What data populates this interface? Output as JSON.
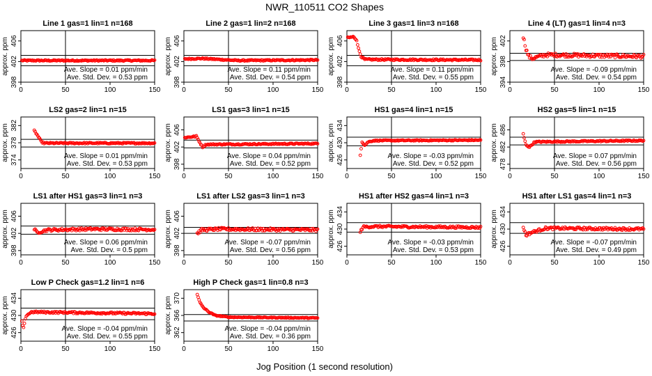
{
  "figure": {
    "title": "NWR_110511  CO2 Shapes",
    "xlabel": "Jog Position (1 second resolution)",
    "marker_color": "#ff0000"
  },
  "chart_data": [
    {
      "type": "scatter",
      "title": "Line 1 gas=1 lin=1 n=168",
      "ylabel": "approx. ppm",
      "xlim": [
        0,
        150
      ],
      "xticks": [
        0,
        50,
        100,
        150
      ],
      "ylim": [
        398,
        408
      ],
      "yticks": [
        398,
        402,
        406
      ],
      "hlines": [
        403.2,
        401.2
      ],
      "vline": 50,
      "slope": "Ave. Slope = 0.01  ppm/min",
      "sd": "Ave. Std. Dev. = 0.53  ppm",
      "series": [
        {
          "x_start": 1,
          "x_end": 150,
          "values": [
            [
              1,
              402.2
            ],
            [
              150,
              402.2
            ]
          ],
          "noise": 0.12
        }
      ]
    },
    {
      "type": "scatter",
      "title": "Line 2 gas=1 lin=2 n=168",
      "ylabel": "approx. ppm",
      "xlim": [
        0,
        150
      ],
      "xticks": [
        0,
        50,
        100,
        150
      ],
      "ylim": [
        398,
        408
      ],
      "yticks": [
        398,
        402,
        406
      ],
      "hlines": [
        403.2,
        401.2
      ],
      "vline": 50,
      "slope": "Ave. Slope = 0.11  ppm/min",
      "sd": "Ave. Std. Dev. = 0.54  ppm",
      "series": [
        {
          "x_start": 1,
          "x_end": 150,
          "values": [
            [
              1,
              402.5
            ],
            [
              20,
              402.6
            ],
            [
              60,
              402.2
            ],
            [
              150,
              402.3
            ]
          ],
          "noise": 0.12
        }
      ]
    },
    {
      "type": "scatter",
      "title": "Line 3 gas=1 lin=3 n=168",
      "ylabel": "approx. ppm",
      "xlim": [
        0,
        150
      ],
      "xticks": [
        0,
        50,
        100,
        150
      ],
      "ylim": [
        398,
        408
      ],
      "yticks": [
        398,
        402,
        406
      ],
      "hlines": [
        403.2,
        401.2
      ],
      "vline": 50,
      "slope": "Ave. Slope = 0.11  ppm/min",
      "sd": "Ave. Std. Dev. = 0.55  ppm",
      "series": [
        {
          "x_start": 1,
          "x_end": 150,
          "values": [
            [
              1,
              406.6
            ],
            [
              7,
              406.8
            ],
            [
              11,
              406.2
            ],
            [
              13,
              404.5
            ],
            [
              16,
              403.0
            ],
            [
              20,
              402.4
            ],
            [
              150,
              402.3
            ]
          ],
          "noise": 0.15
        }
      ]
    },
    {
      "type": "scatter",
      "title": "Line 4 (LT) gas=1 lin=4 n=3",
      "ylabel": "approx. ppm",
      "xlim": [
        0,
        150
      ],
      "xticks": [
        0,
        50,
        100,
        150
      ],
      "ylim": [
        394,
        404
      ],
      "yticks": [
        394,
        398,
        402
      ],
      "hlines": [
        399.6,
        398.2
      ],
      "vline": 50,
      "slope": "Ave. Slope = -0.09  ppm/min",
      "sd": "Ave. Std. Dev. = 0.54  ppm",
      "series": [
        {
          "x_start": 15,
          "x_end": 150,
          "values": [
            [
              15,
              402.8
            ],
            [
              18,
              400.5
            ],
            [
              21,
              399.0
            ],
            [
              25,
              398.6
            ],
            [
              40,
              399.3
            ],
            [
              150,
              399.0
            ]
          ],
          "noise": 0.35
        }
      ]
    },
    {
      "type": "scatter",
      "title": "LS2 gas=2 lin=1 n=15",
      "ylabel": "approx. ppm",
      "xlim": [
        0,
        150
      ],
      "xticks": [
        0,
        50,
        100,
        150
      ],
      "ylim": [
        372,
        384
      ],
      "yticks": [
        374,
        378,
        382
      ],
      "hlines": [
        378.8,
        377.0
      ],
      "vline": 50,
      "slope": "Ave. Slope = 0.01  ppm/min",
      "sd": "Ave. Std. Dev. = 0.53  ppm",
      "series": [
        {
          "x_start": 15,
          "x_end": 150,
          "values": [
            [
              15,
              380.8
            ],
            [
              19,
              379.6
            ],
            [
              23,
              378.2
            ],
            [
              26,
              377.9
            ],
            [
              150,
              377.9
            ]
          ],
          "noise": 0.15
        }
      ]
    },
    {
      "type": "scatter",
      "title": "LS1 gas=3 lin=1 n=15",
      "ylabel": "approx. ppm",
      "xlim": [
        0,
        150
      ],
      "xticks": [
        0,
        50,
        100,
        150
      ],
      "ylim": [
        397,
        409
      ],
      "yticks": [
        398,
        402,
        406
      ],
      "hlines": [
        403.6,
        401.8
      ],
      "vline": 50,
      "slope": "Ave. Slope = 0.04  ppm/min",
      "sd": "Ave. Std. Dev. = 0.52  ppm",
      "series": [
        {
          "x_start": 1,
          "x_end": 150,
          "values": [
            [
              1,
              404.2
            ],
            [
              14,
              404.5
            ],
            [
              18,
              403.0
            ],
            [
              21,
              402.0
            ],
            [
              25,
              402.6
            ],
            [
              150,
              402.8
            ]
          ],
          "noise": 0.15
        }
      ]
    },
    {
      "type": "scatter",
      "title": "HS1 gas=4 lin=1 n=15",
      "ylabel": "approx. ppm",
      "xlim": [
        0,
        150
      ],
      "xticks": [
        0,
        50,
        100,
        150
      ],
      "ylim": [
        424,
        436
      ],
      "yticks": [
        426,
        430,
        434
      ],
      "hlines": [
        431.3,
        429.3
      ],
      "vline": 50,
      "slope": "Ave. Slope = -0.03  ppm/min",
      "sd": "Ave. Std. Dev. = 0.52  ppm",
      "series": [
        {
          "x_start": 15,
          "x_end": 150,
          "values": [
            [
              15,
              427.2
            ],
            [
              17,
              430.2
            ],
            [
              20,
              429.4
            ],
            [
              24,
              430.2
            ],
            [
              30,
              430.5
            ],
            [
              150,
              430.6
            ]
          ],
          "noise": 0.12
        }
      ]
    },
    {
      "type": "scatter",
      "title": "HS2 gas=5 lin=1 n=15",
      "ylabel": "approx. ppm",
      "xlim": [
        0,
        150
      ],
      "xticks": [
        0,
        50,
        100,
        150
      ],
      "ylim": [
        477,
        489
      ],
      "yticks": [
        478,
        482,
        486
      ],
      "hlines": [
        484.3,
        482.5
      ],
      "vline": 50,
      "slope": "Ave. Slope = 0.07  ppm/min",
      "sd": "Ave. Std. Dev. = 0.56  ppm",
      "series": [
        {
          "x_start": 15,
          "x_end": 150,
          "values": [
            [
              15,
              485.0
            ],
            [
              18,
              482.5
            ],
            [
              22,
              482.0
            ],
            [
              28,
              483.2
            ],
            [
              150,
              483.5
            ]
          ],
          "noise": 0.15
        }
      ]
    },
    {
      "type": "scatter",
      "title": "LS1 after HS1 gas=3 lin=1 n=3",
      "ylabel": "approx. ppm",
      "xlim": [
        0,
        150
      ],
      "xticks": [
        0,
        50,
        100,
        150
      ],
      "ylim": [
        397,
        409
      ],
      "yticks": [
        398,
        402,
        406
      ],
      "hlines": [
        403.7,
        401.8
      ],
      "vline": 50,
      "slope": "Ave. Slope = 0.06  ppm/min",
      "sd": "Ave. Std. Dev. = 0.5  ppm",
      "series": [
        {
          "x_start": 15,
          "x_end": 150,
          "values": [
            [
              15,
              403.0
            ],
            [
              18,
              402.2
            ],
            [
              30,
              402.8
            ],
            [
              80,
              403.0
            ],
            [
              150,
              402.9
            ]
          ],
          "noise": 0.3
        }
      ]
    },
    {
      "type": "scatter",
      "title": "LS1 after LS2 gas=3 lin=1 n=3",
      "ylabel": "approx. ppm",
      "xlim": [
        0,
        150
      ],
      "xticks": [
        0,
        50,
        100,
        150
      ],
      "ylim": [
        397,
        409
      ],
      "yticks": [
        398,
        402,
        406
      ],
      "hlines": [
        403.4,
        402.0
      ],
      "vline": 50,
      "slope": "Ave. Slope = -0.07  ppm/min",
      "sd": "Ave. Std. Dev. = 0.56  ppm",
      "series": [
        {
          "x_start": 15,
          "x_end": 150,
          "values": [
            [
              15,
              402.0
            ],
            [
              20,
              402.8
            ],
            [
              40,
              403.0
            ],
            [
              150,
              402.8
            ]
          ],
          "noise": 0.32
        }
      ]
    },
    {
      "type": "scatter",
      "title": "HS1 after HS2 gas=4 lin=1 n=3",
      "ylabel": "approx. ppm",
      "xlim": [
        0,
        150
      ],
      "xticks": [
        0,
        50,
        100,
        150
      ],
      "ylim": [
        424,
        436
      ],
      "yticks": [
        426,
        430,
        434
      ],
      "hlines": [
        431.5,
        429.3
      ],
      "vline": 50,
      "slope": "Ave. Slope = -0.03  ppm/min",
      "sd": "Ave. Std. Dev. = 0.53  ppm",
      "series": [
        {
          "x_start": 15,
          "x_end": 150,
          "values": [
            [
              15,
              429.3
            ],
            [
              18,
              430.5
            ],
            [
              30,
              430.6
            ],
            [
              150,
              430.4
            ]
          ],
          "noise": 0.25
        }
      ]
    },
    {
      "type": "scatter",
      "title": "HS1 after LS1 gas=4 lin=1 n=3",
      "ylabel": "approx. ppm",
      "xlim": [
        0,
        150
      ],
      "xticks": [
        0,
        50,
        100,
        150
      ],
      "ylim": [
        424,
        436
      ],
      "yticks": [
        426,
        430,
        434
      ],
      "hlines": [
        431.5,
        429.0
      ],
      "vline": 50,
      "slope": "Ave. Slope = -0.07  ppm/min",
      "sd": "Ave. Std. Dev. = 0.49  ppm",
      "series": [
        {
          "x_start": 15,
          "x_end": 150,
          "values": [
            [
              15,
              430.5
            ],
            [
              18,
              428.6
            ],
            [
              24,
              429.2
            ],
            [
              40,
              430.2
            ],
            [
              150,
              430.0
            ]
          ],
          "noise": 0.3
        }
      ]
    },
    {
      "type": "scatter",
      "title": "Low P Check gas=1.2 lin=1 n=6",
      "ylabel": "approx. ppm",
      "xlim": [
        0,
        150
      ],
      "xticks": [
        0,
        50,
        100,
        150
      ],
      "ylim": [
        424,
        436
      ],
      "yticks": [
        426,
        430,
        434
      ],
      "hlines": [
        431.7,
        429.0
      ],
      "vline": 50,
      "slope": "Ave. Slope = -0.04  ppm/min",
      "sd": "Ave. Std. Dev. = 0.55  ppm",
      "series": [
        {
          "x_start": 1,
          "x_end": 150,
          "values": [
            [
              1,
              428.5
            ],
            [
              3,
              427.0
            ],
            [
              6,
              430.0
            ],
            [
              12,
              430.8
            ],
            [
              150,
              430.4
            ]
          ],
          "noise": 0.22
        }
      ]
    },
    {
      "type": "scatter",
      "title": "High P Check gas=1 lin=0.8 n=3",
      "ylabel": "approx. ppm",
      "xlim": [
        0,
        150
      ],
      "xticks": [
        0,
        50,
        100,
        150
      ],
      "ylim": [
        360,
        372
      ],
      "yticks": [
        362,
        366,
        370
      ],
      "hlines": [
        366.2,
        364.7
      ],
      "vline": 50,
      "slope": "Ave. Slope = -0.04  ppm/min",
      "sd": "Ave. Std. Dev. = 0.36  ppm",
      "series": [
        {
          "x_start": 15,
          "x_end": 150,
          "values": [
            [
              15,
              370.8
            ],
            [
              18,
              369.0
            ],
            [
              22,
              367.8
            ],
            [
              28,
              366.8
            ],
            [
              35,
              366.0
            ],
            [
              50,
              365.6
            ],
            [
              150,
              365.4
            ]
          ],
          "noise": 0.1
        }
      ]
    }
  ]
}
